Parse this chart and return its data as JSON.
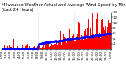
{
  "title_line1": "Milwaukee Weather Actual and Average Wind Speed by Minute mph",
  "title_line2": "(Last 24 Hours)",
  "n_points": 1440,
  "bar_color": "#ff0000",
  "dot_color": "#0000ff",
  "background_color": "#ffffff",
  "plot_bg_color": "#ffffff",
  "ylim": [
    0,
    14
  ],
  "ytick_values": [
    2,
    4,
    6,
    8,
    10,
    12,
    14
  ],
  "grid_color": "#bbbbbb",
  "title_fontsize": 3.8,
  "tick_fontsize": 3.0,
  "n_vgrid": 2
}
